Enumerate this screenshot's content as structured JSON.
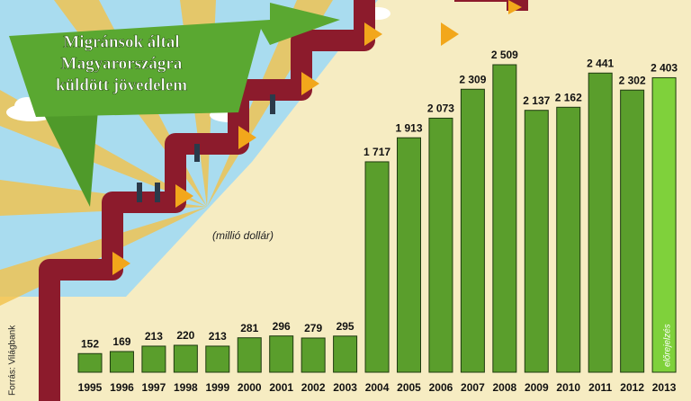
{
  "chart_data": {
    "type": "bar",
    "title": [
      "Migránsok által",
      "Magyarországra",
      "küldött jövedelem"
    ],
    "subtitle": "(millió dollár)",
    "source": "Forrás: Világbank",
    "annotation": "előrejelzés",
    "categories": [
      "1995",
      "1996",
      "1997",
      "1998",
      "1999",
      "2000",
      "2001",
      "2002",
      "2003",
      "2004",
      "2005",
      "2006",
      "2007",
      "2008",
      "2009",
      "2010",
      "2011",
      "2012",
      "2013"
    ],
    "values": [
      152,
      169,
      213,
      220,
      213,
      281,
      296,
      279,
      295,
      1717,
      1913,
      2073,
      2309,
      2509,
      2137,
      2162,
      2441,
      2302,
      2403
    ],
    "value_labels": [
      "152",
      "169",
      "213",
      "220",
      "213",
      "281",
      "296",
      "279",
      "295",
      "1 717",
      "1 913",
      "2 073",
      "2 309",
      "2 509",
      "2 137",
      "2 162",
      "2 441",
      "2 302",
      "2 403"
    ],
    "colors": [
      "#5a9e2c",
      "#5a9e2c",
      "#5a9e2c",
      "#5a9e2c",
      "#5a9e2c",
      "#5a9e2c",
      "#5a9e2c",
      "#5a9e2c",
      "#5a9e2c",
      "#5a9e2c",
      "#5a9e2c",
      "#5a9e2c",
      "#5a9e2c",
      "#5a9e2c",
      "#5a9e2c",
      "#5a9e2c",
      "#5a9e2c",
      "#5a9e2c",
      "#7fd13b"
    ]
  }
}
